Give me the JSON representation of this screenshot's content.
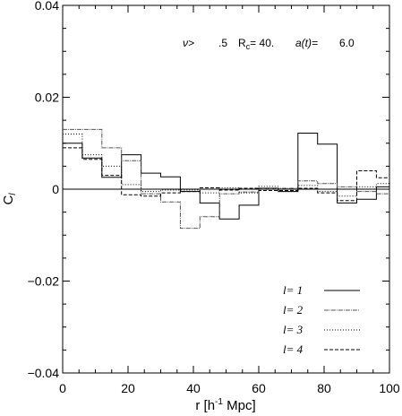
{
  "chart_data": {
    "type": "line",
    "step": true,
    "ylabel_main": "C",
    "ylabel_sub": "l",
    "xlabel": "r [h",
    "xlabel_sup": "-1",
    "xlabel_tail": " Mpc]",
    "xlim": [
      0,
      100
    ],
    "ylim": [
      -0.04,
      0.04
    ],
    "x_ticks": [
      0,
      20,
      40,
      60,
      80,
      100
    ],
    "x_tick_labels": [
      "0",
      "20",
      "40",
      "60",
      "80",
      "100"
    ],
    "y_ticks": [
      -0.04,
      -0.02,
      0,
      0.02,
      0.04
    ],
    "y_tick_labels": [
      "−0.04",
      "−0.02",
      "0",
      "0.02",
      "0.04"
    ],
    "grid": false,
    "legend_position": "bottom-right",
    "annotation": {
      "nu": "ν>",
      "nu_value": ".5",
      "rc": "R",
      "rc_sub": "c",
      "rc_value": "= 40.",
      "at": "a(t)=",
      "at_value": "6.0"
    },
    "bin_edges": [
      0,
      6,
      12,
      18,
      24,
      30,
      36,
      42,
      48,
      54,
      60,
      66,
      72,
      78,
      84,
      90,
      96,
      100
    ],
    "series": [
      {
        "name": "l= 1",
        "dash": "",
        "color": "#000000",
        "width": 1.0,
        "values": [
          0.01,
          0.0068,
          0.0026,
          0.0075,
          0.0035,
          0.0027,
          -0.0005,
          -0.003,
          -0.0065,
          -0.0035,
          0.0002,
          -0.0005,
          0.0122,
          0.0098,
          -0.003,
          -0.0022,
          0.0005
        ]
      },
      {
        "name": "l= 2",
        "dash": "5,1,1,1",
        "color": "#555555",
        "width": 1.0,
        "values": [
          0.013,
          0.013,
          0.009,
          0.0062,
          -0.001,
          -0.0028,
          -0.0085,
          -0.006,
          -0.001,
          -0.0006,
          0.0001,
          0.0002,
          0.0018,
          0.0012,
          0.0005,
          -0.0005,
          -0.001
        ]
      },
      {
        "name": "l= 3",
        "dash": "1,2",
        "color": "#000000",
        "width": 1.0,
        "values": [
          0.012,
          0.0075,
          0.005,
          0.001,
          -0.0005,
          -0.0002,
          -0.0002,
          -0.0008,
          0.0003,
          -0.0008,
          0.0006,
          -0.0005,
          0.0008,
          -0.0005,
          -0.0015,
          0.0005,
          0.0012
        ]
      },
      {
        "name": "l= 4",
        "dash": "4,2",
        "color": "#000000",
        "width": 1.0,
        "values": [
          0.009,
          0.0065,
          0.003,
          -0.0012,
          -0.0015,
          -0.0008,
          -0.0005,
          0.0003,
          -0.0002,
          0.0002,
          -0.0003,
          -0.0003,
          0.0002,
          -0.0008,
          -0.0025,
          0.004,
          0.0025
        ]
      }
    ]
  }
}
